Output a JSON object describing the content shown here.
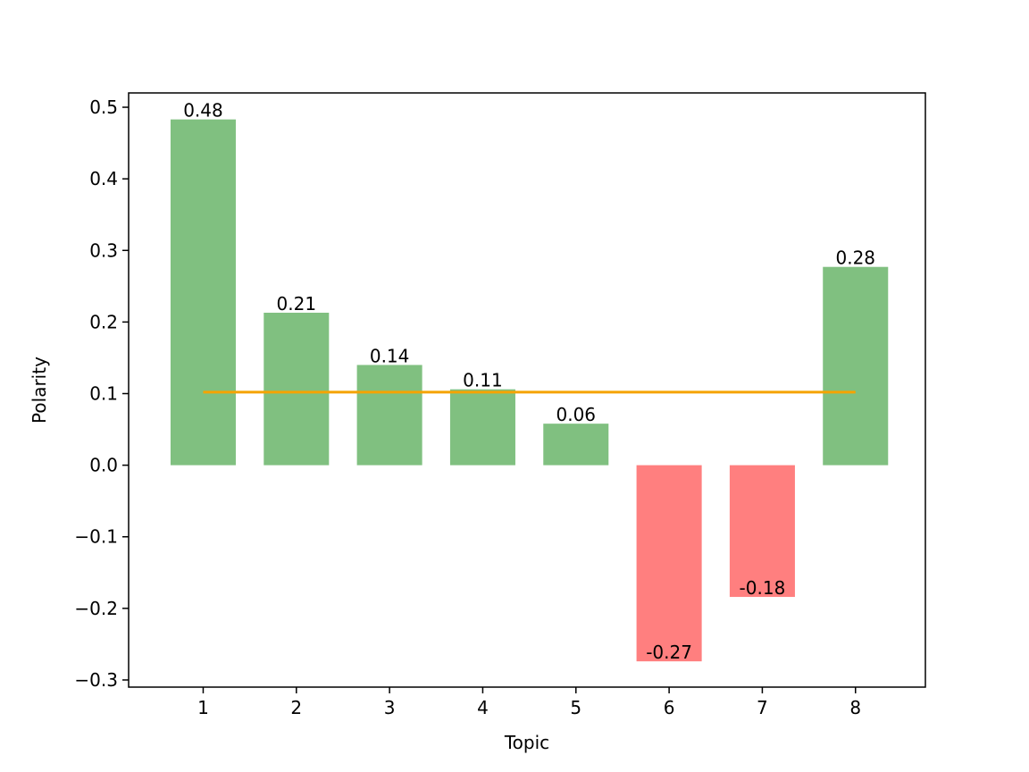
{
  "chart_data": {
    "type": "bar",
    "categories": [
      "1",
      "2",
      "3",
      "4",
      "5",
      "6",
      "7",
      "8"
    ],
    "values": [
      0.483,
      0.213,
      0.14,
      0.106,
      0.058,
      -0.274,
      -0.184,
      0.277
    ],
    "data_labels": [
      "0.48",
      "0.21",
      "0.14",
      "0.11",
      "0.06",
      "-0.27",
      "-0.18",
      "0.28"
    ],
    "mean_line": {
      "value": 0.102,
      "x_start": 1,
      "x_end": 8,
      "color": "#f5a300"
    },
    "xlabel": "Topic",
    "ylabel": "Polarity",
    "ylim": [
      -0.31,
      0.52
    ],
    "xlim": [
      0.2,
      8.75
    ],
    "y_ticks": [
      0.5,
      0.4,
      0.3,
      0.2,
      0.1,
      0.0,
      -0.1,
      -0.2,
      -0.3
    ],
    "y_tick_labels": [
      "0.5",
      "0.4",
      "0.3",
      "0.2",
      "0.1",
      "0.0",
      "−0.1",
      "−0.2",
      "−0.3"
    ],
    "bar_width": 0.7,
    "colors": {
      "positive": "#80c080",
      "negative": "#ff7f7f",
      "axis": "#000000"
    },
    "grid": false
  }
}
